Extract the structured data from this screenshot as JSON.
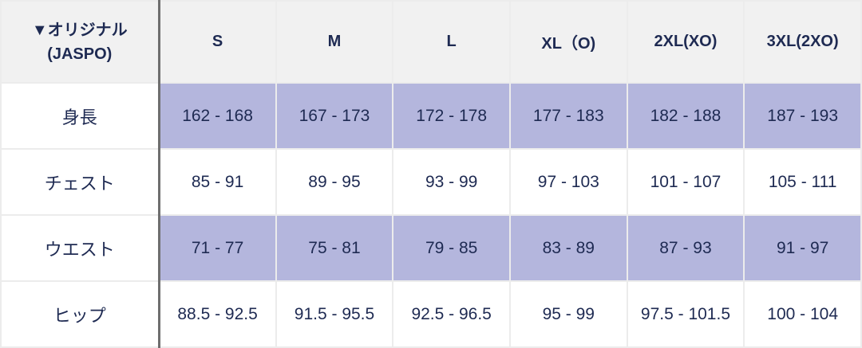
{
  "header": {
    "title_line1": "▼オリジナル",
    "title_line2": "(JASPO)",
    "sizes": [
      "S",
      "M",
      "L",
      "XL（O)",
      "2XL(XO)",
      "3XL(2XO)"
    ]
  },
  "rows": [
    {
      "label": "身長",
      "values": [
        "162 - 168",
        "167 - 173",
        "172 - 178",
        "177 - 183",
        "182 - 188",
        "187 - 193"
      ]
    },
    {
      "label": "チェスト",
      "values": [
        "85 - 91",
        "89 - 95",
        "93 - 99",
        "97 - 103",
        "101 - 107",
        "105 - 111"
      ]
    },
    {
      "label": "ウエスト",
      "values": [
        "71 - 77",
        "75 - 81",
        "79 - 85",
        "83 - 89",
        "87 - 93",
        "91 - 97"
      ]
    },
    {
      "label": "ヒップ",
      "values": [
        "88.5 - 92.5",
        "91.5 - 95.5",
        "92.5 - 96.5",
        "95 - 99",
        "97.5 - 101.5",
        "100 - 104"
      ]
    }
  ],
  "colors": {
    "highlight": "#b4b6dd",
    "header_bg": "#f1f1f1",
    "text": "#1e2a52"
  }
}
